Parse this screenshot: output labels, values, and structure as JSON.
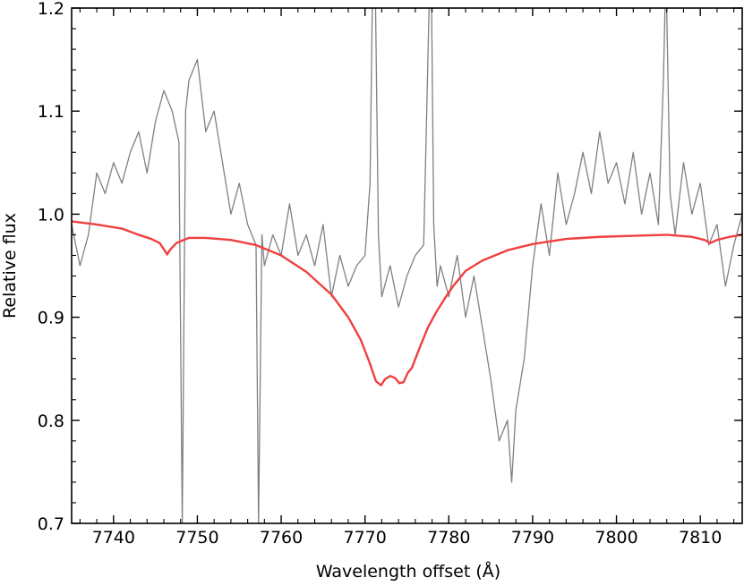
{
  "chart_data": {
    "type": "line",
    "xlabel": "Wavelength offset (Å)",
    "ylabel": "Relative flux",
    "xlim": [
      7735,
      7815
    ],
    "ylim": [
      0.7,
      1.2
    ],
    "x_ticks": [
      7740,
      7750,
      7760,
      7770,
      7780,
      7790,
      7800,
      7810
    ],
    "x_tick_labels": [
      "7740",
      "7750",
      "7760",
      "7770",
      "7780",
      "7790",
      "7800",
      "7810"
    ],
    "y_ticks": [
      0.7,
      0.8,
      0.9,
      1.0,
      1.1,
      1.2
    ],
    "y_tick_labels": [
      "0.7",
      "0.8",
      "0.9",
      "1.0",
      "1.1",
      "1.2"
    ],
    "ticks_direction": "in",
    "minor_ticks": true,
    "grid": false,
    "legend": "none",
    "series": [
      {
        "style": "observed",
        "color": "#808080",
        "x": [
          7735,
          7736,
          7737,
          7738,
          7739,
          7740,
          7741,
          7742,
          7743,
          7744,
          7745,
          7746,
          7747,
          7747.8,
          7748.2,
          7748.6,
          7749,
          7750,
          7751,
          7752,
          7753,
          7754,
          7755,
          7756,
          7757,
          7757.3,
          7757.7,
          7758,
          7759,
          7760,
          7761,
          7762,
          7763,
          7764,
          7765,
          7766,
          7767,
          7768,
          7769,
          7770,
          7770.6,
          7770.9,
          7771.2,
          7771.6,
          7772,
          7773,
          7774,
          7775,
          7776,
          7777,
          7777.7,
          7777.9,
          7778.2,
          7778.6,
          7779,
          7780,
          7781,
          7782,
          7783,
          7784,
          7785,
          7786,
          7787,
          7787.5,
          7788,
          7789,
          7790,
          7791,
          7792,
          7793,
          7794,
          7795,
          7796,
          7797,
          7798,
          7799,
          7800,
          7801,
          7802,
          7803,
          7804,
          7805,
          7805.6,
          7805.9,
          7806.4,
          7807,
          7808,
          7809,
          7810,
          7811,
          7812,
          7813,
          7814,
          7815
        ],
        "y": [
          0.99,
          0.95,
          0.98,
          1.04,
          1.02,
          1.05,
          1.03,
          1.06,
          1.08,
          1.04,
          1.09,
          1.12,
          1.1,
          1.07,
          0.7,
          1.1,
          1.13,
          1.15,
          1.08,
          1.1,
          1.05,
          1.0,
          1.03,
          0.99,
          0.97,
          0.7,
          0.98,
          0.95,
          0.98,
          0.96,
          1.01,
          0.96,
          0.98,
          0.95,
          0.99,
          0.92,
          0.96,
          0.93,
          0.95,
          0.96,
          1.03,
          1.22,
          1.24,
          0.98,
          0.92,
          0.95,
          0.91,
          0.94,
          0.96,
          0.97,
          1.22,
          1.24,
          0.99,
          0.93,
          0.95,
          0.92,
          0.96,
          0.9,
          0.94,
          0.89,
          0.84,
          0.78,
          0.8,
          0.74,
          0.81,
          0.86,
          0.95,
          1.01,
          0.96,
          1.04,
          0.99,
          1.02,
          1.06,
          1.02,
          1.08,
          1.03,
          1.05,
          1.01,
          1.06,
          1.0,
          1.04,
          0.99,
          1.13,
          1.24,
          1.02,
          0.98,
          1.05,
          1.0,
          1.03,
          0.97,
          0.99,
          0.93,
          0.97,
          1.0
        ]
      },
      {
        "style": "model",
        "color": "#f04040",
        "x": [
          7735,
          7738,
          7741,
          7743,
          7744.5,
          7745.5,
          7746,
          7746.4,
          7746.8,
          7747.5,
          7749,
          7751,
          7754,
          7757,
          7760,
          7763,
          7766,
          7768,
          7769.5,
          7770.5,
          7771.3,
          7771.9,
          7772.4,
          7773,
          7773.6,
          7774.1,
          7774.6,
          7775.1,
          7775.6,
          7776.5,
          7777.5,
          7778.5,
          7779.5,
          7780.5,
          7782,
          7784,
          7787,
          7790,
          7794,
          7798,
          7802,
          7806,
          7809,
          7810.5,
          7811.2,
          7812,
          7813.5,
          7815
        ],
        "y": [
          0.993,
          0.99,
          0.986,
          0.98,
          0.976,
          0.972,
          0.966,
          0.961,
          0.966,
          0.972,
          0.977,
          0.977,
          0.975,
          0.97,
          0.96,
          0.944,
          0.922,
          0.9,
          0.878,
          0.857,
          0.838,
          0.834,
          0.84,
          0.843,
          0.841,
          0.836,
          0.837,
          0.846,
          0.851,
          0.87,
          0.89,
          0.905,
          0.918,
          0.93,
          0.945,
          0.955,
          0.965,
          0.971,
          0.976,
          0.978,
          0.979,
          0.98,
          0.978,
          0.975,
          0.972,
          0.975,
          0.978,
          0.98
        ]
      }
    ]
  }
}
